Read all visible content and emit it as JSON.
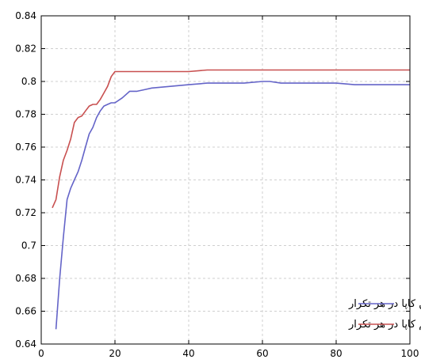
{
  "chart_data": {
    "type": "line",
    "title": "",
    "xlabel": "",
    "ylabel": "",
    "xlim": [
      0,
      100
    ],
    "ylim": [
      0.64,
      0.84
    ],
    "x_ticks": [
      "0",
      "20",
      "40",
      "60",
      "80",
      "100"
    ],
    "y_ticks": [
      "0.64",
      "0.66",
      "0.68",
      "0.7",
      "0.72",
      "0.74",
      "0.76",
      "0.78",
      "0.8",
      "0.82",
      "0.84"
    ],
    "grid": true,
    "legend_position": "bottom-right",
    "series": [
      {
        "name": "میانگین کاپا در هر تکرار",
        "color": "#6464c8",
        "x": [
          4,
          5,
          6,
          7,
          8,
          9,
          10,
          11,
          12,
          13,
          14,
          15,
          16,
          17,
          18,
          19,
          20,
          22,
          24,
          26,
          28,
          30,
          35,
          40,
          45,
          50,
          55,
          60,
          62,
          65,
          70,
          75,
          80,
          85,
          90,
          95,
          100
        ],
        "y": [
          0.649,
          0.68,
          0.705,
          0.728,
          0.735,
          0.74,
          0.745,
          0.752,
          0.76,
          0.768,
          0.772,
          0.778,
          0.782,
          0.785,
          0.786,
          0.787,
          0.787,
          0.79,
          0.794,
          0.794,
          0.795,
          0.796,
          0.797,
          0.798,
          0.799,
          0.799,
          0.799,
          0.8,
          0.8,
          0.799,
          0.799,
          0.799,
          0.799,
          0.798,
          0.798,
          0.798,
          0.798
        ]
      },
      {
        "name": "ماکزیمم کاپا در هر تکرار",
        "color": "#c85050",
        "x": [
          3,
          4,
          5,
          6,
          7,
          8,
          9,
          10,
          11,
          12,
          13,
          14,
          15,
          16,
          17,
          18,
          19,
          20,
          25,
          30,
          40,
          45,
          50,
          60,
          70,
          80,
          90,
          100
        ],
        "y": [
          0.723,
          0.728,
          0.742,
          0.752,
          0.758,
          0.765,
          0.775,
          0.778,
          0.779,
          0.782,
          0.785,
          0.786,
          0.786,
          0.789,
          0.793,
          0.797,
          0.803,
          0.806,
          0.806,
          0.806,
          0.806,
          0.807,
          0.807,
          0.807,
          0.807,
          0.807,
          0.807,
          0.807
        ]
      }
    ]
  }
}
